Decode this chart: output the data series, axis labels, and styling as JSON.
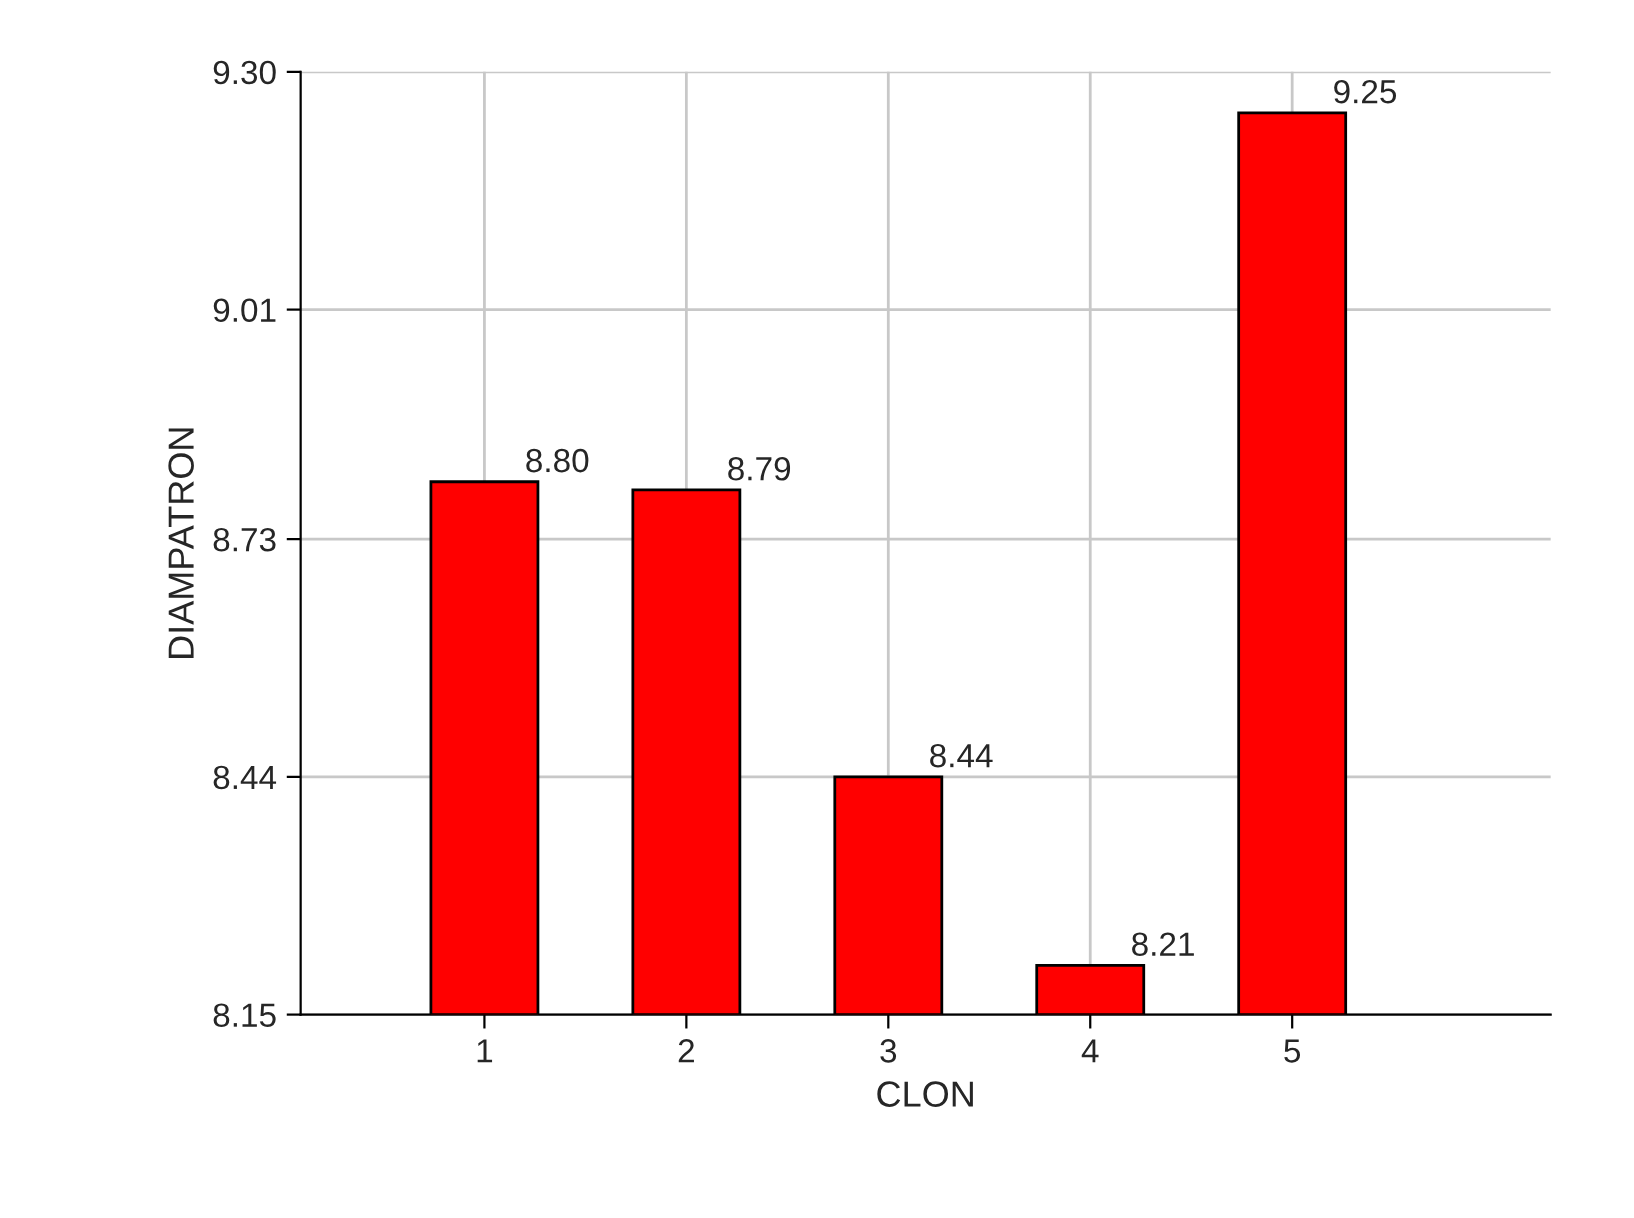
{
  "chart_data": {
    "type": "bar",
    "xlabel": "CLON",
    "ylabel": "DIAMPATRON",
    "categories": [
      "1",
      "2",
      "3",
      "4",
      "5"
    ],
    "values": [
      8.8,
      8.79,
      8.44,
      8.21,
      9.25
    ],
    "value_labels": [
      "8.80",
      "8.79",
      "8.44",
      "8.21",
      "9.25"
    ],
    "color": "#ff0000",
    "ylim": [
      8.15,
      9.3
    ],
    "yticks": [
      {
        "value": 8.15,
        "label": "8.15"
      },
      8.44,
      8.73,
      9.01,
      {
        "value": 9.3,
        "label": "9.30"
      }
    ],
    "grid": true
  }
}
